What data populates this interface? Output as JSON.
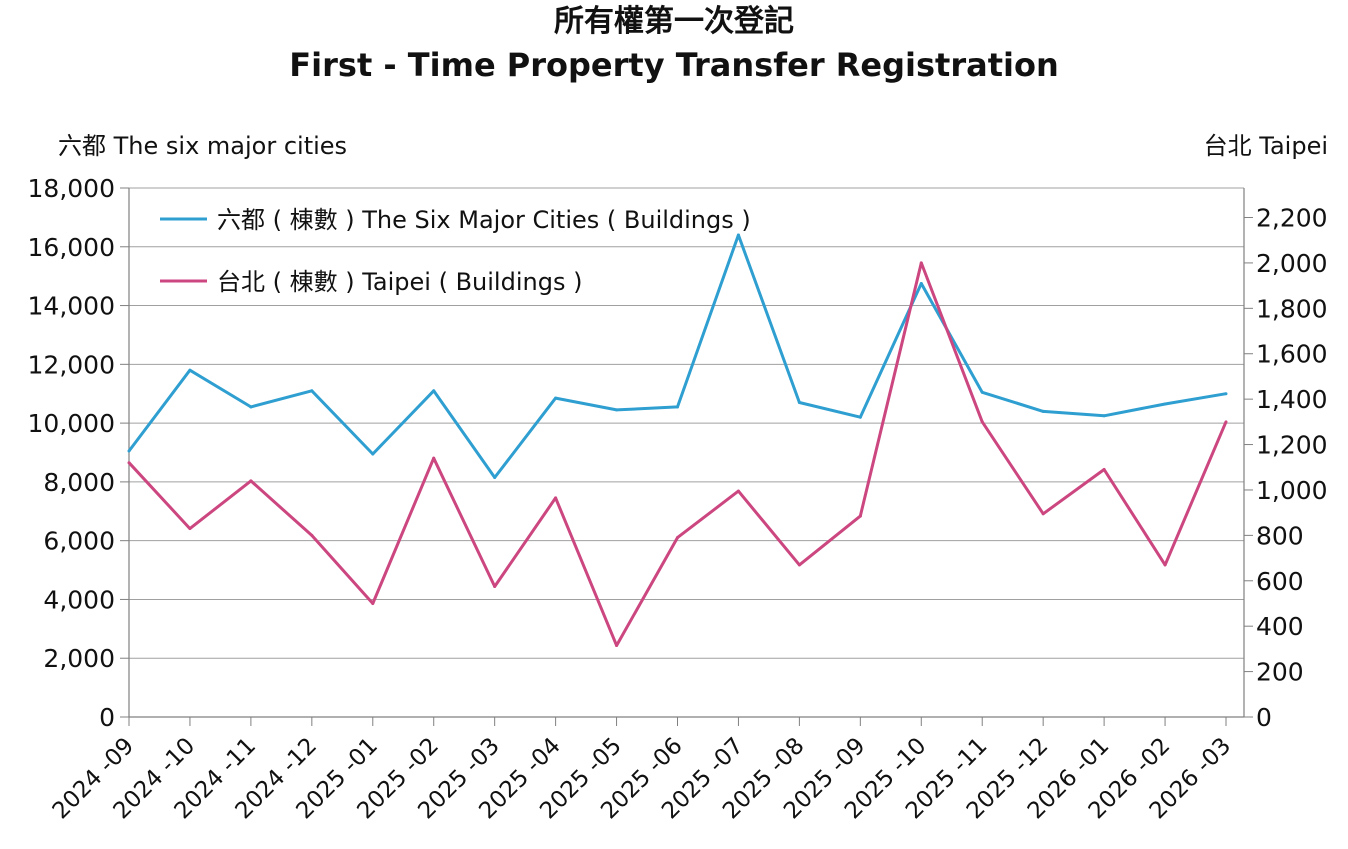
{
  "title_zh": "所有權第一次登記",
  "title_en": "First - Time Property Transfer Registration",
  "left_axis_label": "六都  The six major cities",
  "right_axis_label": "台北 Taipei",
  "colors": {
    "six_cities": "#2e9fd0",
    "taipei": "#cc4680",
    "grid": "#a0a0a0",
    "axis": "#808080"
  },
  "chart_data": {
    "type": "line",
    "categories": [
      "2024 -09",
      "2024 -10",
      "2024 -11",
      "2024 -12",
      "2025 -01",
      "2025 -02",
      "2025 -03",
      "2025 -04",
      "2025 -05",
      "2025 -06",
      "2025 -07",
      "2025 -08",
      "2025 -09",
      "2025 -10",
      "2025 -11",
      "2025 -12",
      "2026 -01",
      "2026 -02",
      "2026 -03"
    ],
    "left_axis": {
      "ylim": [
        0,
        18000
      ],
      "ticks": [
        "0",
        "2,000",
        "4,000",
        "6,000",
        "8,000",
        "10,000",
        "12,000",
        "14,000",
        "16,000",
        "18,000"
      ]
    },
    "right_axis": {
      "ylim": [
        0,
        2330
      ],
      "ticks": [
        "0",
        "200",
        "400",
        "600",
        "800",
        "1,000",
        "1,200",
        "1,400",
        "1,600",
        "1,800",
        "2,000",
        "2,200"
      ]
    },
    "legend_position": "top-left",
    "series": [
      {
        "name": "六都 ( 棟數 ) The Six Major Cities ( Buildings )",
        "axis": "left",
        "values": [
          9050,
          11800,
          10550,
          11100,
          8950,
          11100,
          8150,
          10850,
          10450,
          10550,
          16400,
          10700,
          10200,
          14750,
          11050,
          10400,
          10250,
          10650,
          11000
        ]
      },
      {
        "name": "台北 ( 棟數 ) Taipei ( Buildings )",
        "axis": "right",
        "values": [
          1120,
          830,
          1040,
          800,
          500,
          1140,
          575,
          965,
          315,
          790,
          995,
          670,
          885,
          2000,
          1300,
          895,
          1090,
          670,
          1300
        ]
      }
    ]
  }
}
